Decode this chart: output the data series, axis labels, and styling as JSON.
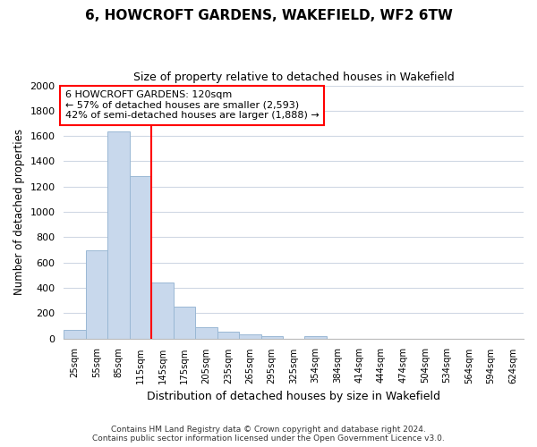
{
  "title": "6, HOWCROFT GARDENS, WAKEFIELD, WF2 6TW",
  "subtitle": "Size of property relative to detached houses in Wakefield",
  "xlabel": "Distribution of detached houses by size in Wakefield",
  "ylabel": "Number of detached properties",
  "bar_values": [
    65,
    695,
    1635,
    1280,
    440,
    250,
    90,
    55,
    30,
    20,
    0,
    15,
    0,
    0,
    0,
    0,
    0,
    0,
    0,
    0,
    0
  ],
  "x_tick_labels": [
    "25sqm",
    "55sqm",
    "85sqm",
    "115sqm",
    "145sqm",
    "175sqm",
    "205sqm",
    "235sqm",
    "265sqm",
    "295sqm",
    "325sqm",
    "354sqm",
    "384sqm",
    "414sqm",
    "444sqm",
    "474sqm",
    "504sqm",
    "534sqm",
    "564sqm",
    "594sqm",
    "624sqm"
  ],
  "bar_color": "#c8d8ec",
  "bar_edge_color": "#9ab8d4",
  "vline_color": "red",
  "vline_position": 3.5,
  "ylim": [
    0,
    2000
  ],
  "annotation_title": "6 HOWCROFT GARDENS: 120sqm",
  "annotation_line1": "← 57% of detached houses are smaller (2,593)",
  "annotation_line2": "42% of semi-detached houses are larger (1,888) →",
  "annotation_box_color": "#ffffff",
  "annotation_box_edge": "red",
  "footer1": "Contains HM Land Registry data © Crown copyright and database right 2024.",
  "footer2": "Contains public sector information licensed under the Open Government Licence v3.0.",
  "background_color": "#ffffff",
  "grid_color": "#d0d8e4"
}
